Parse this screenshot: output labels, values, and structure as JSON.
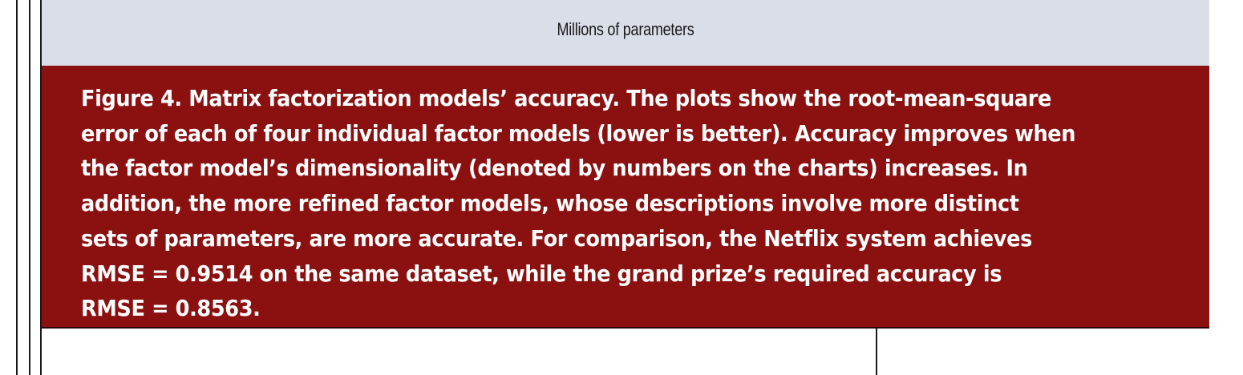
{
  "chart": {
    "axis_label": "Millions of parameters"
  },
  "caption": {
    "lines": [
      "Figure 4. Matrix factorization models’ accuracy. The plots show the root-mean-square",
      "error of each of four individual factor models (lower is better). Accuracy improves when",
      "the factor model’s dimensionality (denoted by numbers on the charts) increases. In",
      "addition, the more refined factor models, whose descriptions involve more distinct",
      "sets of parameters, are more accurate. For comparison, the Netflix system achieves",
      "RMSE = 0.9514 on the same dataset, while the grand prize’s required accuracy is",
      "RMSE = 0.8563."
    ]
  },
  "colors": {
    "caption_background": "#8b1010",
    "chart_background": "#dadee9",
    "caption_text": "#ffffff"
  }
}
